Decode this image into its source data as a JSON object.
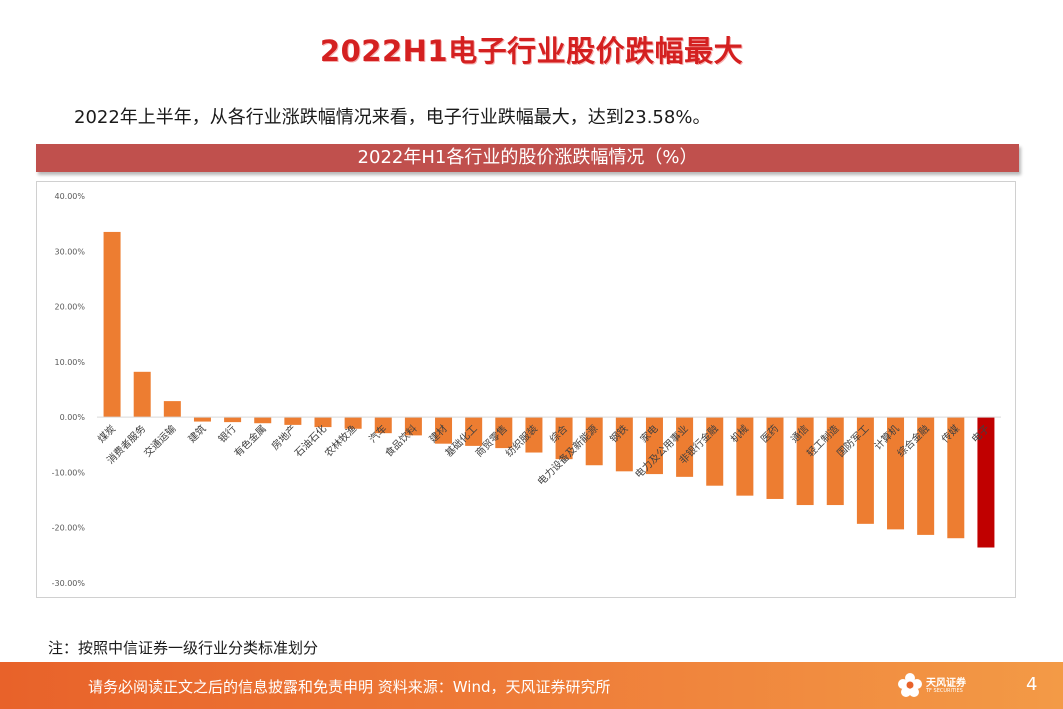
{
  "page": {
    "title": "2022H1电子行业股价跌幅最大",
    "subtitle": "2022年上半年，从各行业涨跌幅情况来看，电子行业跌幅最大，达到23.58%。",
    "note": "注：按照中信证券一级行业分类标准划分",
    "footer_text": "请务必阅读正文之后的信息披露和免责申明 资料来源：Wind，天风证券研究所",
    "logo_text": "天风证券",
    "logo_sub": "TF SECURITIES",
    "page_number": "4"
  },
  "colors": {
    "bar": "#ed7d31",
    "highlight": "#c00000",
    "banner": "#c0504d",
    "title": "#d42020"
  },
  "chart_data": {
    "type": "bar",
    "title": "2022年H1各行业的股价涨跌幅情况（%）",
    "xlabel": "",
    "ylabel": "",
    "ylim": [
      -30,
      40
    ],
    "yticks": [
      40,
      30,
      20,
      10,
      0,
      -10,
      -20,
      -30
    ],
    "ytick_labels": [
      "40.00%",
      "30.00%",
      "20.00%",
      "10.00%",
      "0.00%",
      "-10.00%",
      "-20.00%",
      "-30.00%"
    ],
    "categories": [
      "煤炭",
      "消费者服务",
      "交通运输",
      "建筑",
      "银行",
      "有色金属",
      "房地产",
      "石油石化",
      "农林牧渔",
      "汽车",
      "食品饮料",
      "建材",
      "基础化工",
      "商贸零售",
      "纺织服装",
      "综合",
      "电力设备及新能源",
      "钢铁",
      "家电",
      "电力及公用事业",
      "非银行金融",
      "机械",
      "医药",
      "通信",
      "轻工制造",
      "国防军工",
      "计算机",
      "综合金融",
      "传媒",
      "电子"
    ],
    "values": [
      33.5,
      8.2,
      2.9,
      -0.8,
      -0.9,
      -1.1,
      -1.4,
      -1.8,
      -2.1,
      -2.9,
      -3.3,
      -4.8,
      -5.2,
      -5.6,
      -6.4,
      -7.6,
      -8.7,
      -9.8,
      -10.3,
      -10.8,
      -12.4,
      -14.2,
      -14.8,
      -15.9,
      -15.9,
      -19.3,
      -20.3,
      -21.3,
      -21.9,
      -23.58
    ],
    "highlight_index": 29,
    "legend": "none",
    "grid": false
  }
}
